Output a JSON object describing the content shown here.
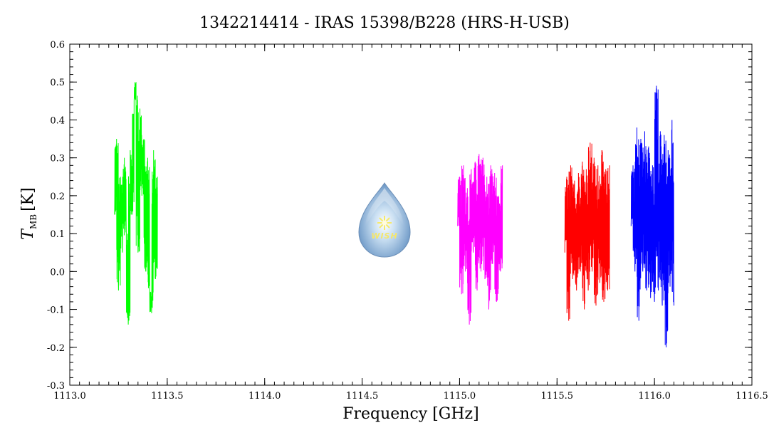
{
  "chart_data": {
    "type": "line",
    "title": "1342214414 - IRAS 15398/B228 (HRS-H-USB)",
    "xlabel": "Frequency [GHz]",
    "ylabel_main": "T",
    "ylabel_sub": "MB",
    "ylabel_unit": "[K]",
    "xlim": [
      1113.0,
      1116.5
    ],
    "ylim": [
      -0.3,
      0.6
    ],
    "xticks": [
      "1113.0",
      "1113.5",
      "1114.0",
      "1114.5",
      "1115.0",
      "1115.5",
      "1116.0",
      "1116.5"
    ],
    "yticks": [
      "-0.3",
      "-0.2",
      "-0.1",
      "0.0",
      "0.1",
      "0.2",
      "0.3",
      "0.4",
      "0.5",
      "0.6"
    ],
    "grid": false,
    "series": [
      {
        "color": "#00ff00",
        "x_range": [
          1113.23,
          1113.45
        ],
        "points": [
          [
            1113.23,
            0.15
          ],
          [
            1113.24,
            0.35
          ],
          [
            1113.25,
            -0.05
          ],
          [
            1113.26,
            0.25
          ],
          [
            1113.27,
            0.05
          ],
          [
            1113.28,
            0.3
          ],
          [
            1113.29,
            0.1
          ],
          [
            1113.3,
            -0.14
          ],
          [
            1113.31,
            0.32
          ],
          [
            1113.32,
            0.15
          ],
          [
            1113.33,
            0.45
          ],
          [
            1113.34,
            0.5
          ],
          [
            1113.35,
            0.05
          ],
          [
            1113.36,
            0.43
          ],
          [
            1113.37,
            0.2
          ],
          [
            1113.38,
            0.35
          ],
          [
            1113.39,
            0.0
          ],
          [
            1113.4,
            0.3
          ],
          [
            1113.41,
            -0.05
          ],
          [
            1113.42,
            -0.11
          ],
          [
            1113.43,
            0.32
          ],
          [
            1113.44,
            -0.02
          ],
          [
            1113.45,
            0.25
          ]
        ]
      },
      {
        "color": "#ff00ff",
        "x_range": [
          1114.99,
          1115.22
        ],
        "points": [
          [
            1114.99,
            0.12
          ],
          [
            1115.0,
            0.25
          ],
          [
            1115.01,
            -0.06
          ],
          [
            1115.02,
            0.28
          ],
          [
            1115.03,
            0.0
          ],
          [
            1115.04,
            0.22
          ],
          [
            1115.05,
            -0.14
          ],
          [
            1115.06,
            0.27
          ],
          [
            1115.07,
            0.05
          ],
          [
            1115.08,
            0.29
          ],
          [
            1115.09,
            -0.05
          ],
          [
            1115.1,
            0.31
          ],
          [
            1115.11,
            0.0
          ],
          [
            1115.12,
            0.3
          ],
          [
            1115.13,
            -0.02
          ],
          [
            1115.14,
            0.25
          ],
          [
            1115.15,
            -0.1
          ],
          [
            1115.16,
            0.28
          ],
          [
            1115.17,
            0.02
          ],
          [
            1115.18,
            0.26
          ],
          [
            1115.19,
            -0.08
          ],
          [
            1115.2,
            0.2
          ],
          [
            1115.21,
            0.0
          ],
          [
            1115.22,
            0.28
          ]
        ]
      },
      {
        "color": "#ff0000",
        "x_range": [
          1115.54,
          1115.77
        ],
        "points": [
          [
            1115.54,
            0.05
          ],
          [
            1115.55,
            0.25
          ],
          [
            1115.56,
            -0.13
          ],
          [
            1115.57,
            0.28
          ],
          [
            1115.58,
            -0.02
          ],
          [
            1115.59,
            0.24
          ],
          [
            1115.6,
            -0.05
          ],
          [
            1115.61,
            0.26
          ],
          [
            1115.62,
            0.0
          ],
          [
            1115.63,
            0.29
          ],
          [
            1115.64,
            -0.1
          ],
          [
            1115.65,
            0.27
          ],
          [
            1115.66,
            -0.05
          ],
          [
            1115.67,
            0.34
          ],
          [
            1115.68,
            0.0
          ],
          [
            1115.69,
            0.3
          ],
          [
            1115.7,
            -0.09
          ],
          [
            1115.71,
            0.28
          ],
          [
            1115.72,
            -0.03
          ],
          [
            1115.73,
            0.32
          ],
          [
            1115.74,
            -0.08
          ],
          [
            1115.75,
            0.27
          ],
          [
            1115.76,
            -0.05
          ],
          [
            1115.77,
            0.28
          ]
        ]
      },
      {
        "color": "#0000ff",
        "x_range": [
          1115.88,
          1116.1
        ],
        "points": [
          [
            1115.88,
            0.12
          ],
          [
            1115.89,
            0.28
          ],
          [
            1115.9,
            0.0
          ],
          [
            1115.91,
            0.38
          ],
          [
            1115.92,
            -0.13
          ],
          [
            1115.93,
            0.35
          ],
          [
            1115.94,
            0.0
          ],
          [
            1115.95,
            0.37
          ],
          [
            1115.96,
            -0.05
          ],
          [
            1115.97,
            0.33
          ],
          [
            1115.98,
            -0.07
          ],
          [
            1115.99,
            0.28
          ],
          [
            1116.0,
            -0.08
          ],
          [
            1116.01,
            0.49
          ],
          [
            1116.02,
            -0.05
          ],
          [
            1116.03,
            0.37
          ],
          [
            1116.04,
            -0.09
          ],
          [
            1116.05,
            0.36
          ],
          [
            1116.06,
            -0.2
          ],
          [
            1116.07,
            0.32
          ],
          [
            1116.08,
            -0.04
          ],
          [
            1116.09,
            0.4
          ],
          [
            1116.1,
            -0.09
          ]
        ]
      }
    ]
  },
  "logo": {
    "text": "WISH",
    "icon": "wish-droplet-icon"
  }
}
